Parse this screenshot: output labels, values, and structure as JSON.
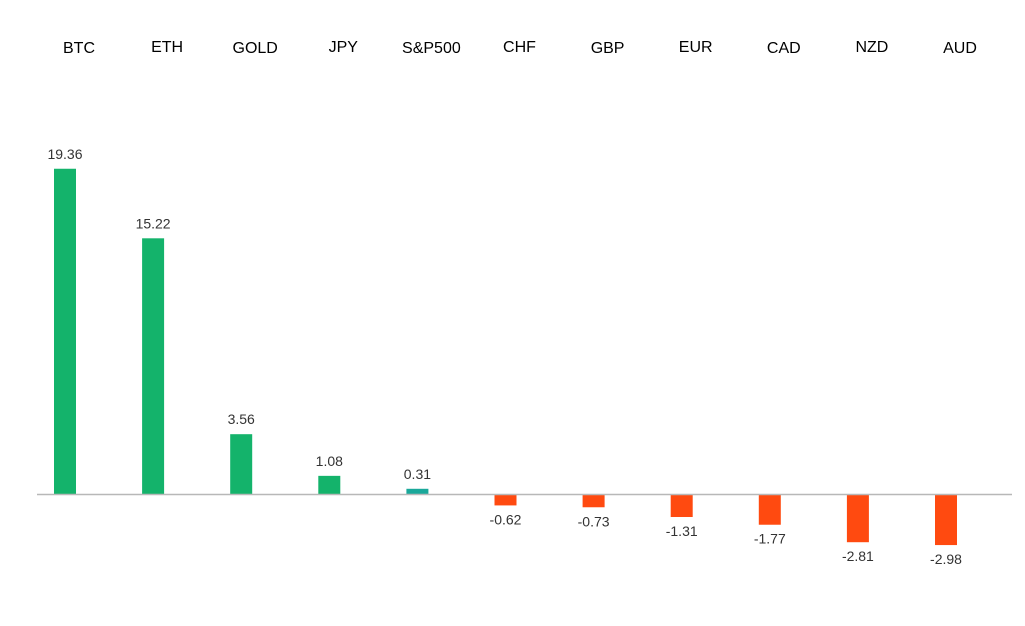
{
  "chart_data": {
    "type": "bar",
    "categories": [
      "BTC",
      "ETH",
      "GOLD",
      "JPY",
      "S&P500",
      "CHF",
      "GBP",
      "EUR",
      "CAD",
      "NZD",
      "AUD"
    ],
    "values": [
      19.36,
      15.22,
      3.56,
      1.08,
      0.31,
      -0.62,
      -0.73,
      -1.31,
      -1.77,
      -2.81,
      -2.98
    ],
    "data_labels": [
      "19.36",
      "15.22",
      "3.56",
      "1.08",
      "0.31",
      "-0.62",
      "-0.73",
      "-1.31",
      "-1.77",
      "-2.81",
      "-2.98"
    ],
    "title": "",
    "xlabel": "",
    "ylabel": "",
    "category_labels_position": "top",
    "grid": false,
    "legend": "none",
    "colors": {
      "positive": "#14b36b",
      "positive_small": "#1aa89a",
      "negative": "#ff4a10",
      "axis": "#b8b8b8"
    }
  }
}
